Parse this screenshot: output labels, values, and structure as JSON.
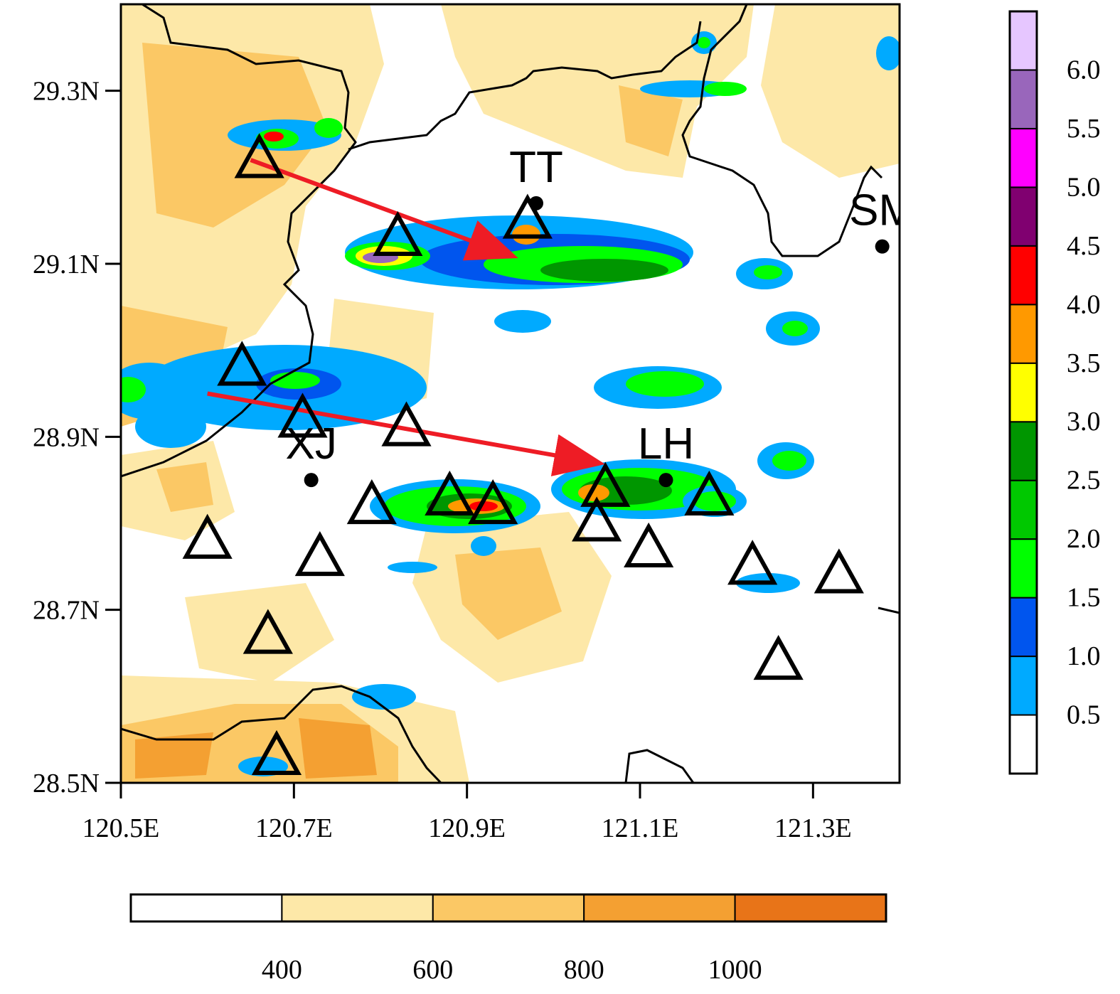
{
  "map": {
    "lon_range": [
      120.5,
      121.4
    ],
    "lat_range": [
      28.5,
      29.4
    ],
    "x_ticks": [
      {
        "value": 120.5,
        "label": "120.5E"
      },
      {
        "value": 120.7,
        "label": "120.7E"
      },
      {
        "value": 120.9,
        "label": "120.9E"
      },
      {
        "value": 121.1,
        "label": "121.1E"
      },
      {
        "value": 121.3,
        "label": "121.3E"
      }
    ],
    "y_ticks": [
      {
        "value": 29.3,
        "label": "29.3N"
      },
      {
        "value": 29.1,
        "label": "29.1N"
      },
      {
        "value": 28.9,
        "label": "28.9N"
      },
      {
        "value": 28.7,
        "label": "28.7N"
      },
      {
        "value": 28.5,
        "label": "28.5N"
      }
    ],
    "stations": [
      {
        "name": "TT",
        "lon": 120.98,
        "lat": 29.17
      },
      {
        "name": "SM",
        "lon": 121.38,
        "lat": 29.12
      },
      {
        "name": "XJ",
        "lon": 120.72,
        "lat": 28.85
      },
      {
        "name": "LH",
        "lon": 121.13,
        "lat": 28.85
      }
    ],
    "triangles": [
      {
        "lon": 120.66,
        "lat": 29.22
      },
      {
        "lon": 120.82,
        "lat": 29.13
      },
      {
        "lon": 120.97,
        "lat": 29.15
      },
      {
        "lon": 120.64,
        "lat": 28.98
      },
      {
        "lon": 120.71,
        "lat": 28.92
      },
      {
        "lon": 120.83,
        "lat": 28.91
      },
      {
        "lon": 120.79,
        "lat": 28.82
      },
      {
        "lon": 120.88,
        "lat": 28.83
      },
      {
        "lon": 120.93,
        "lat": 28.82
      },
      {
        "lon": 121.06,
        "lat": 28.84
      },
      {
        "lon": 121.05,
        "lat": 28.8
      },
      {
        "lon": 121.11,
        "lat": 28.77
      },
      {
        "lon": 121.18,
        "lat": 28.83
      },
      {
        "lon": 120.6,
        "lat": 28.78
      },
      {
        "lon": 120.73,
        "lat": 28.76
      },
      {
        "lon": 121.23,
        "lat": 28.75
      },
      {
        "lon": 121.33,
        "lat": 28.74
      },
      {
        "lon": 120.67,
        "lat": 28.67
      },
      {
        "lon": 121.26,
        "lat": 28.64
      },
      {
        "lon": 120.68,
        "lat": 28.53
      }
    ],
    "arrows": [
      {
        "from": {
          "lon": 120.65,
          "lat": 29.22
        },
        "to": {
          "lon": 120.95,
          "lat": 29.11
        }
      },
      {
        "from": {
          "lon": 120.6,
          "lat": 28.95
        },
        "to": {
          "lon": 121.05,
          "lat": 28.87
        }
      }
    ],
    "arrow_color": "#ee1c25"
  },
  "rain_colorbar": {
    "labels": [
      "0.5",
      "1.0",
      "1.5",
      "2.0",
      "2.5",
      "3.0",
      "3.5",
      "4.0",
      "4.5",
      "5.0",
      "5.5",
      "6.0"
    ],
    "colors": [
      "#ffffff",
      "#00aaff",
      "#0055ee",
      "#00ff00",
      "#00c800",
      "#009600",
      "#ffff00",
      "#ff9900",
      "#ff0000",
      "#800070",
      "#ff00ff",
      "#9966bb",
      "#e6c6ff"
    ]
  },
  "terrain_colorbar": {
    "labels": [
      "400",
      "600",
      "800",
      "1000"
    ],
    "colors": [
      "#ffffff",
      "#fde8a8",
      "#fbc865",
      "#f4a032",
      "#e87418"
    ]
  }
}
